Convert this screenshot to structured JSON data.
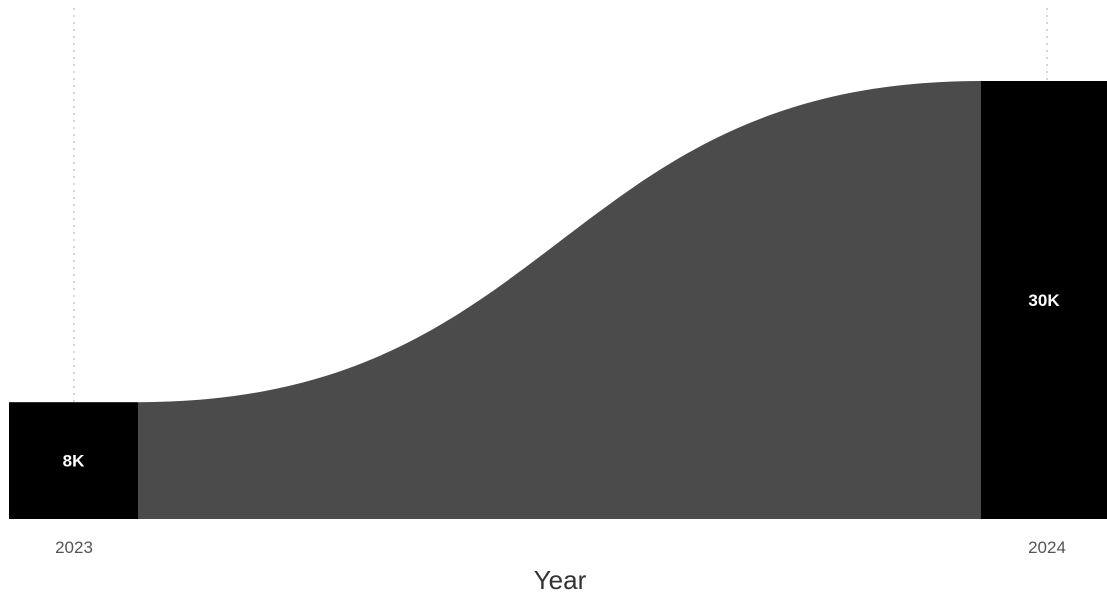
{
  "chart_data": {
    "type": "ribbon",
    "xlabel": "Year",
    "categories": [
      "2023",
      "2024"
    ],
    "series": [
      {
        "values": [
          8000,
          30000
        ],
        "labels": [
          "8K",
          "30K"
        ]
      }
    ],
    "grid": false,
    "legend": "none"
  },
  "colors": {
    "column": "#000000",
    "ribbon": "#4b4b4b",
    "gridline": "#c8c8c8",
    "axis_text": "#555555",
    "axis_title": "#333333",
    "data_label": "#ffffff"
  }
}
